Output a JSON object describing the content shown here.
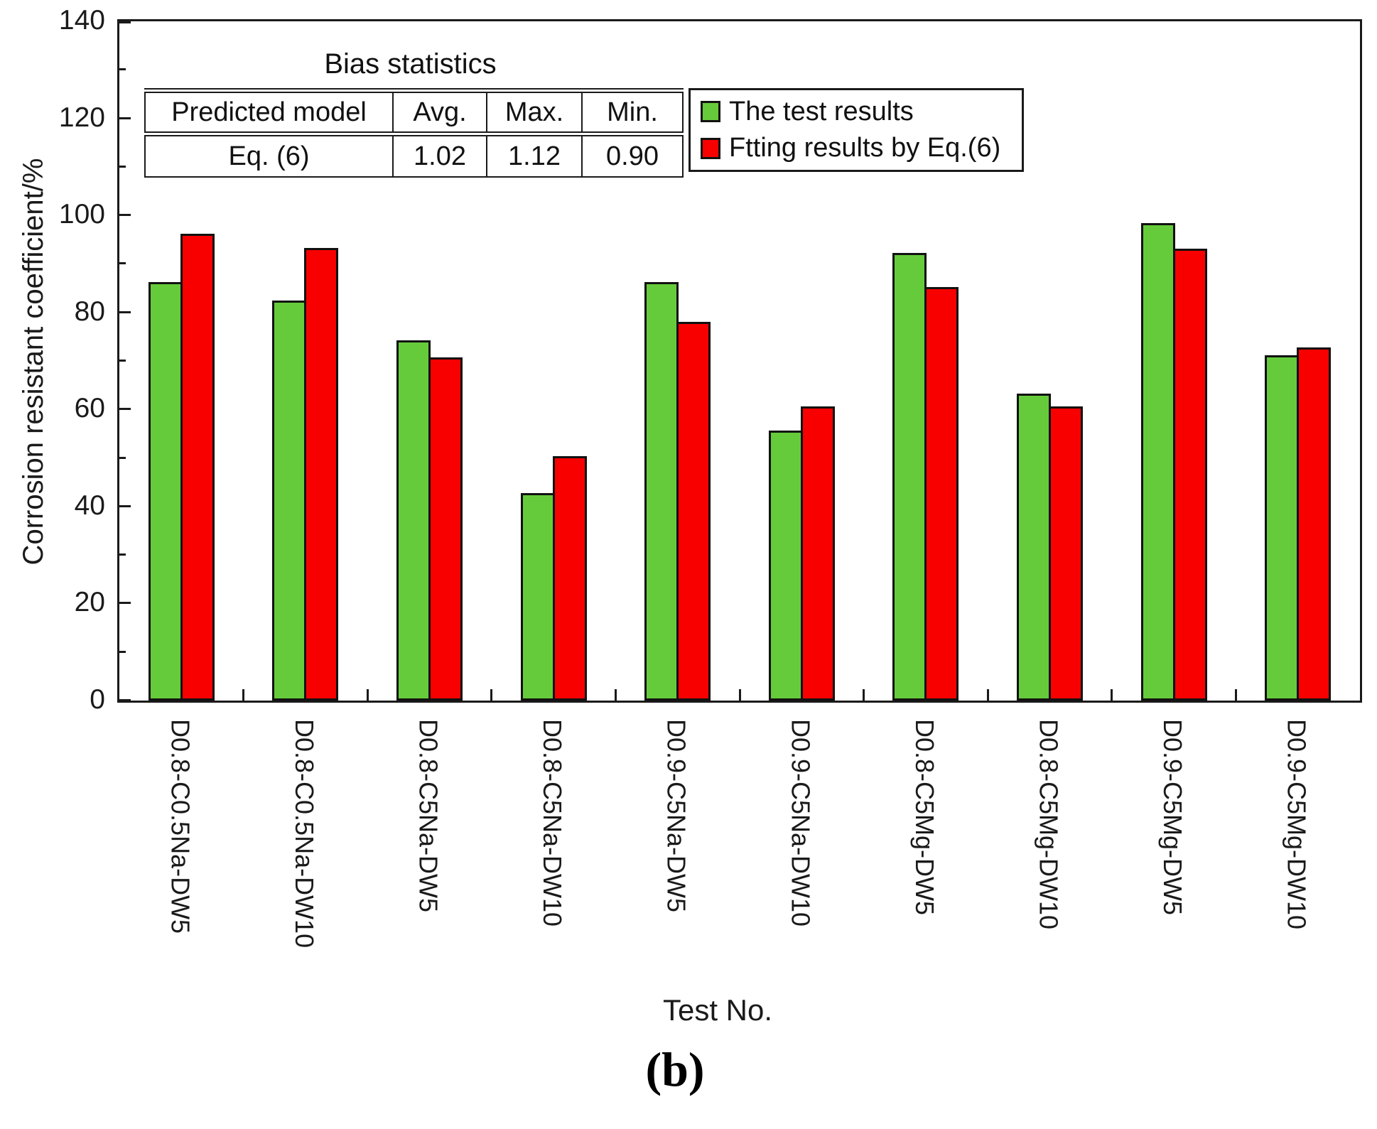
{
  "figure": {
    "caption": "(b)",
    "x_axis_title": "Test No.",
    "y_axis_title": "Corrosion resistant coefficient/%"
  },
  "bias_table": {
    "title": "Bias statistics",
    "headers": [
      "Predicted model",
      "Avg.",
      "Max.",
      "Min."
    ],
    "rows": [
      [
        "Eq. (6)",
        "1.02",
        "1.12",
        "0.90"
      ]
    ]
  },
  "legend": {
    "items": [
      {
        "label": "The test results",
        "color": "#66cb3a"
      },
      {
        "label": "Ftting results by Eq.(6)",
        "color": "#f90000"
      }
    ]
  },
  "chart_data": {
    "type": "bar",
    "title": "",
    "xlabel": "Test No.",
    "ylabel": "Corrosion resistant coefficient/%",
    "ylim": [
      0,
      140
    ],
    "ytick_step": 20,
    "ytick_minor_step": 10,
    "grid": false,
    "legend_position": "top-right-inside",
    "categories": [
      "D0.8-C0.5Na-DW5",
      "D0.8-C0.5Na-DW10",
      "D0.8-C5Na-DW5",
      "D0.8-C5Na-DW10",
      "D0.9-C5Na-DW5",
      "D0.9-C5Na-DW10",
      "D0.8-C5Mg-DW5",
      "D0.8-C5Mg-DW10",
      "D0.9-C5Mg-DW5",
      "D0.9-C5Mg-DW10"
    ],
    "series": [
      {
        "name": "The test results",
        "color": "#66cb3a",
        "values": [
          86.3,
          82.5,
          74.2,
          42.8,
          86.2,
          55.6,
          92.3,
          63.2,
          98.4,
          71.2
        ]
      },
      {
        "name": "Ftting results by Eq.(6)",
        "color": "#f90000",
        "values": [
          96.2,
          93.3,
          70.7,
          50.4,
          78.0,
          60.7,
          85.2,
          60.6,
          93.2,
          72.8
        ]
      }
    ]
  }
}
